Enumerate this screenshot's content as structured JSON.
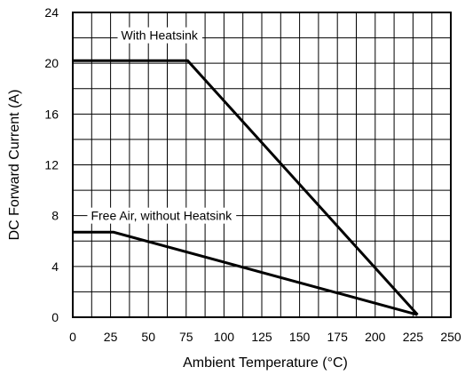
{
  "chart_data": {
    "type": "line",
    "title": "",
    "xlabel": "Ambient Temperature (°C)",
    "ylabel": "DC Forward Current (A)",
    "xlim": [
      0,
      250
    ],
    "ylim": [
      0,
      24
    ],
    "x_ticks": [
      0,
      25,
      50,
      75,
      100,
      125,
      150,
      175,
      200,
      225,
      250
    ],
    "y_ticks": [
      0,
      4,
      8,
      12,
      16,
      20,
      24
    ],
    "x_grid_step": 12.5,
    "y_grid_step": 2,
    "grid": true,
    "legend": "none",
    "series": [
      {
        "name": "With Heatsink",
        "x": [
          0,
          76,
          228
        ],
        "y": [
          20.2,
          20.2,
          0.2
        ]
      },
      {
        "name": "Free Air, without Heatsink",
        "x": [
          0,
          27,
          228
        ],
        "y": [
          6.7,
          6.7,
          0.2
        ]
      }
    ],
    "annotations": [
      {
        "text": "With Heatsink",
        "x": 32,
        "y": 22.2
      },
      {
        "text": "Free Air, without Heatsink",
        "x": 12,
        "y": 8
      }
    ]
  }
}
